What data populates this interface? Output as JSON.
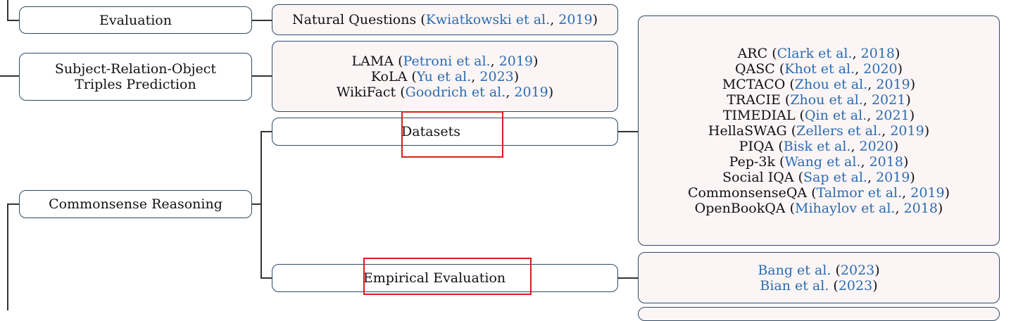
{
  "colors": {
    "box_border": "#2f4a66",
    "box_fill_leaf": "#fbf5f6",
    "citation": "#2b6cb0",
    "highlight": "#e01b1b",
    "connector": "#333333"
  },
  "nodes": {
    "evaluation": "Evaluation",
    "srot_line1": "Subject-Relation-Object",
    "srot_line2": "Triples Prediction",
    "commonsense": "Commonsense Reasoning",
    "datasets": "Datasets",
    "empirical": "Empirical Evaluation"
  },
  "leaves": {
    "natural_questions": {
      "name": "Natural Questions",
      "open": "(",
      "author": "Kwiatkowski et al.",
      "sep": ",",
      "year": "2019",
      "close": ")"
    },
    "srot": [
      {
        "name": "LAMA",
        "open": "(",
        "author": "Petroni et al.",
        "sep": ",",
        "year": "2019",
        "close": ")"
      },
      {
        "name": "KoLA",
        "open": "(",
        "author": "Yu et al.",
        "sep": ",",
        "year": "2023",
        "close": ")"
      },
      {
        "name": "WikiFact",
        "open": "(",
        "author": "Goodrich et al.",
        "sep": ",",
        "year": "2019",
        "close": ")"
      }
    ],
    "datasets": [
      {
        "name": "ARC",
        "open": "(",
        "author": "Clark et al.",
        "sep": ",",
        "year": "2018",
        "close": ")"
      },
      {
        "name": "QASC",
        "open": "(",
        "author": "Khot et al.",
        "sep": ",",
        "year": "2020",
        "close": ")"
      },
      {
        "name": "MCTACO",
        "open": "(",
        "author": "Zhou et al.",
        "sep": ",",
        "year": "2019",
        "close": ")"
      },
      {
        "name": "TRACIE",
        "open": "(",
        "author": "Zhou et al.",
        "sep": ",",
        "year": "2021",
        "close": ")"
      },
      {
        "name": "TIMEDIAL",
        "open": "(",
        "author": "Qin et al.",
        "sep": ",",
        "year": "2021",
        "close": ")"
      },
      {
        "name": "HellaSWAG",
        "open": "(",
        "author": "Zellers et al.",
        "sep": ",",
        "year": "2019",
        "close": ")"
      },
      {
        "name": "PIQA",
        "open": "(",
        "author": "Bisk et al.",
        "sep": ",",
        "year": "2020",
        "close": ")"
      },
      {
        "name": "Pep-3k",
        "open": "(",
        "author": "Wang et al.",
        "sep": ",",
        "year": "2018",
        "close": ")"
      },
      {
        "name": "Social IQA",
        "open": "(",
        "author": "Sap et al.",
        "sep": ",",
        "year": "2019",
        "close": ")"
      },
      {
        "name": "CommonsenseQA",
        "open": "(",
        "author": "Talmor et al.",
        "sep": ",",
        "year": "2019",
        "close": ")"
      },
      {
        "name": "OpenBookQA",
        "open": "(",
        "author": "Mihaylov et al.",
        "sep": ",",
        "year": "2018",
        "close": ")"
      }
    ],
    "empirical": [
      {
        "author": "Bang et al.",
        "open": "(",
        "year": "2023",
        "close": ")"
      },
      {
        "author": "Bian et al.",
        "open": "(",
        "year": "2023",
        "close": ")"
      }
    ]
  }
}
